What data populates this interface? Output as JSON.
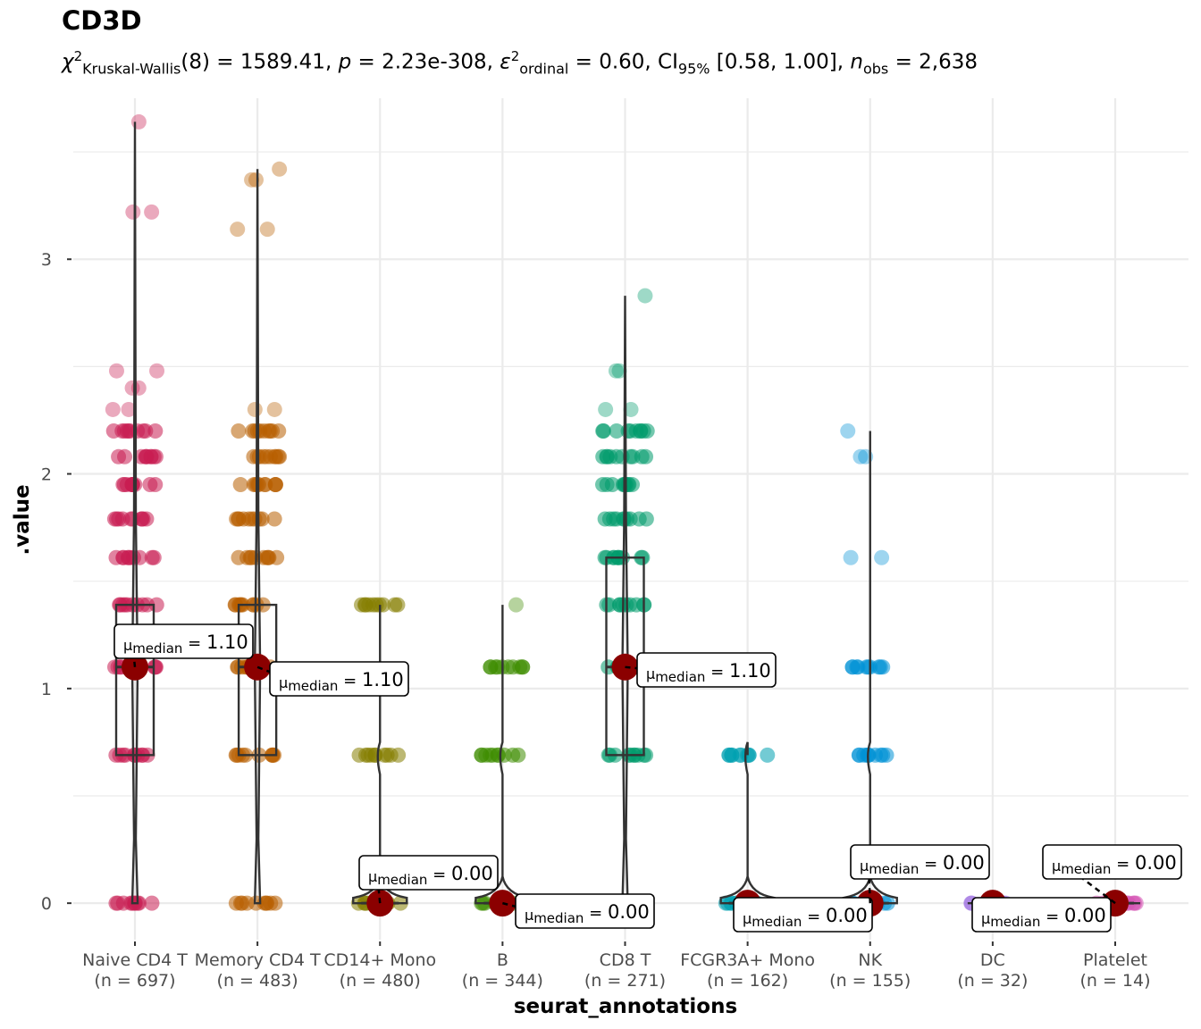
{
  "chart_data": {
    "type": "violin-box-jitter",
    "title": "CD3D",
    "subtitle": {
      "statistic": "χ²Kruskal-Wallis(8) = 1589.41",
      "p": "2.23e-308",
      "effect": "ε²ordinal = 0.60",
      "ci": "CI95% [0.58, 1.00]",
      "n_obs": "2,638",
      "parts": {
        "chi_sym": "χ",
        "chi_sup": "2",
        "chi_sub": "Kruskal-Wallis",
        "df": "(8) = 1589.41, ",
        "p_sym": "p",
        "p_val": " = 2.23e-308, ",
        "eps_sym": "ε",
        "eps_sup": "2",
        "eps_sub": "ordinal",
        "eps_val": " = 0.60, CI",
        "ci_sub": "95%",
        "ci_val": " [0.58, 1.00], ",
        "n_sym": "n",
        "n_sub": "obs",
        "n_val": " = 2,638"
      }
    },
    "xlabel": "seurat_annotations",
    "ylabel": ".value",
    "ylim": [
      -0.17,
      3.75
    ],
    "yticks": [
      0,
      1,
      2,
      3
    ],
    "grid": true,
    "categories": [
      "Naive CD4 T",
      "Memory CD4 T",
      "CD14+ Mono",
      "B",
      "CD8 T",
      "FCGR3A+ Mono",
      "NK",
      "DC",
      "Platelet"
    ],
    "category_counts": [
      "(n = 697)",
      "(n = 483)",
      "(n = 480)",
      "(n = 344)",
      "(n = 271)",
      "(n = 162)",
      "(n = 155)",
      "(n = 32)",
      "(n = 14)"
    ],
    "colors": [
      "#C91D52",
      "#B85F00",
      "#857D00",
      "#3E8C00",
      "#009A6B",
      "#00A0B0",
      "#0091D6",
      "#9A6CE0",
      "#D655B4"
    ],
    "median_point_color": "#8B0000",
    "medians": [
      1.1,
      1.1,
      0.0,
      0.0,
      1.1,
      0.0,
      0.0,
      0.0,
      0.0
    ],
    "median_labels": [
      "μ̂median = 1.10",
      "μ̂median = 1.10",
      "μ̂median = 0.00",
      "μ̂median = 0.00",
      "μ̂median = 1.10",
      "μ̂median = 0.00",
      "μ̂median = 0.00",
      "μ̂median = 0.00",
      "μ̂median = 0.00"
    ],
    "median_label_prefix": "μ̂",
    "median_label_sub": "median",
    "median_label_values": [
      "1.10",
      "1.10",
      "0.00",
      "0.00",
      "1.10",
      "0.00",
      "0.00",
      "0.00",
      "0.00"
    ],
    "boxes": [
      {
        "q1": 0.69,
        "median": 1.1,
        "q3": 1.39
      },
      {
        "q1": 0.69,
        "median": 1.1,
        "q3": 1.39
      },
      {
        "q1": 0,
        "median": 0,
        "q3": 0
      },
      {
        "q1": 0,
        "median": 0,
        "q3": 0
      },
      {
        "q1": 0.69,
        "median": 1.1,
        "q3": 1.61
      },
      {
        "q1": 0,
        "median": 0,
        "q3": 0
      },
      {
        "q1": 0,
        "median": 0,
        "q3": 0
      },
      {
        "q1": 0,
        "median": 0,
        "q3": 0
      },
      {
        "q1": 0,
        "median": 0,
        "q3": 0
      }
    ],
    "max_values": [
      3.64,
      3.42,
      1.39,
      1.39,
      2.83,
      0.69,
      2.2,
      0,
      0
    ],
    "observed_levels": [
      [
        0,
        0.69,
        1.1,
        1.39,
        1.61,
        1.79,
        1.95,
        2.08,
        2.2,
        2.3,
        2.4,
        2.48,
        3.22,
        3.64
      ],
      [
        0,
        0.69,
        1.1,
        1.39,
        1.61,
        1.79,
        1.95,
        2.08,
        2.2,
        2.3,
        3.14,
        3.37,
        3.42
      ],
      [
        0,
        0.69,
        1.39
      ],
      [
        0,
        0.69,
        1.1,
        1.39
      ],
      [
        0,
        0.69,
        1.1,
        1.39,
        1.61,
        1.79,
        1.95,
        2.08,
        2.2,
        2.3,
        2.48,
        2.83
      ],
      [
        0,
        0.69
      ],
      [
        0,
        0.69,
        1.1,
        1.61,
        2.08,
        2.2
      ],
      [
        0
      ],
      [
        0
      ]
    ]
  }
}
